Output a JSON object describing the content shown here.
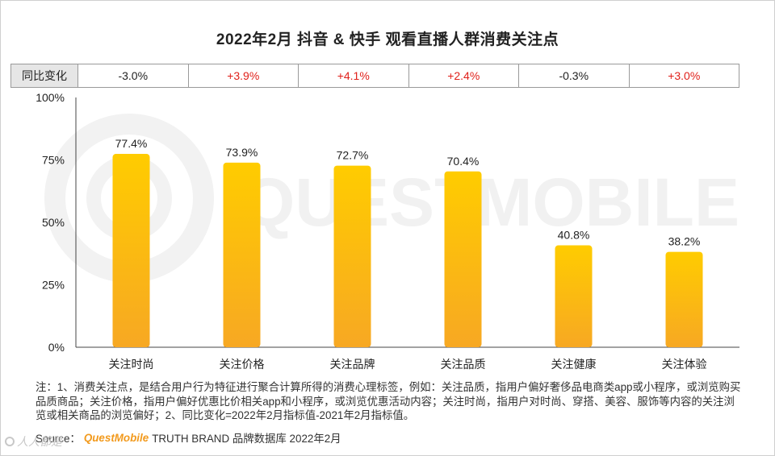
{
  "title": "2022年2月 抖音 & 快手  观看直播人群消费关注点",
  "change_row": {
    "label": "同比变化",
    "values": [
      "-3.0%",
      "+3.9%",
      "+4.1%",
      "+2.4%",
      "-0.3%",
      "+3.0%"
    ]
  },
  "chart_data": {
    "type": "bar",
    "title": "2022年2月 抖音 & 快手  观看直播人群消费关注点",
    "categories": [
      "关注时尚",
      "关注价格",
      "关注品牌",
      "关注品质",
      "关注健康",
      "关注体验"
    ],
    "values": [
      77.4,
      73.9,
      72.7,
      70.4,
      40.8,
      38.2
    ],
    "value_labels": [
      "77.4%",
      "73.9%",
      "72.7%",
      "70.4%",
      "40.8%",
      "38.2%"
    ],
    "ylim": [
      0,
      100
    ],
    "yticks": [
      "0%",
      "25%",
      "50%",
      "75%",
      "100%"
    ],
    "bar_color_top": "#ffcc00",
    "bar_color_bottom": "#f7a823",
    "grid": false,
    "legend": "none"
  },
  "watermark": "QUESTMOBILE",
  "notes": "注：1、消费关注点，是结合用户行为特征进行聚合计算所得的消费心理标签，例如：关注品质，指用户偏好奢侈品电商类app或小程序，或浏览购买品质商品；关注价格，指用户偏好优惠比价相关app和小程序，或浏览优惠活动内容；关注时尚，指用户对时尚、穿搭、美容、服饰等内容的关注浏览或相关商品的浏览偏好；2、同比变化=2022年2月指标值-2021年2月指标值。",
  "source": {
    "prefix": "Source：",
    "brand": "QuestMobile",
    "suffix": "TRUTH BRAND 品牌数据库 2022年2月"
  },
  "bottom_watermark": "人人都是"
}
